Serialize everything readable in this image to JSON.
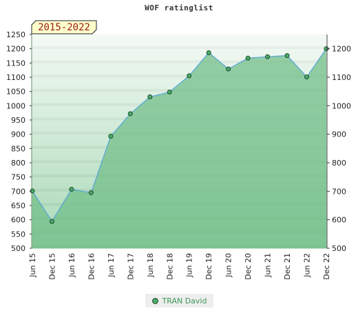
{
  "chart_data": {
    "type": "area",
    "title": "WOF ratinglist",
    "badge": "2015-2022",
    "categories": [
      "Jun 15",
      "Dec 15",
      "Jun 16",
      "Dec 16",
      "Jun 17",
      "Dec 17",
      "Jun 18",
      "Dec 18",
      "Jun 19",
      "Dec 19",
      "Jun 20",
      "Dec 20",
      "Jun 21",
      "Dec 21",
      "Jun 22",
      "Dec 22"
    ],
    "series": [
      {
        "name": "TRAN David",
        "values": [
          701,
          594,
          707,
          695,
          893,
          972,
          1031,
          1048,
          1105,
          1186,
          1129,
          1167,
          1172,
          1176,
          1101,
          1200
        ]
      }
    ],
    "left_axis": {
      "ylim": [
        500,
        1250
      ],
      "ticks": [
        500,
        550,
        600,
        650,
        700,
        750,
        800,
        850,
        900,
        950,
        1000,
        1050,
        1100,
        1150,
        1200,
        1250
      ]
    },
    "right_axis": {
      "ylim": [
        500,
        1250
      ],
      "ticks": [
        500,
        600,
        700,
        800,
        900,
        1000,
        1100,
        1200
      ]
    },
    "legend_placement": "bottom",
    "colors": {
      "line": "#5aa8d8",
      "fill": "#6fbd87",
      "marker": "#4caa6a",
      "marker_edge": "#1c4a2a",
      "legend_text": "#3a9a55",
      "badge_bg": "#ffffcc",
      "badge_text": "#9a1a1a"
    }
  }
}
